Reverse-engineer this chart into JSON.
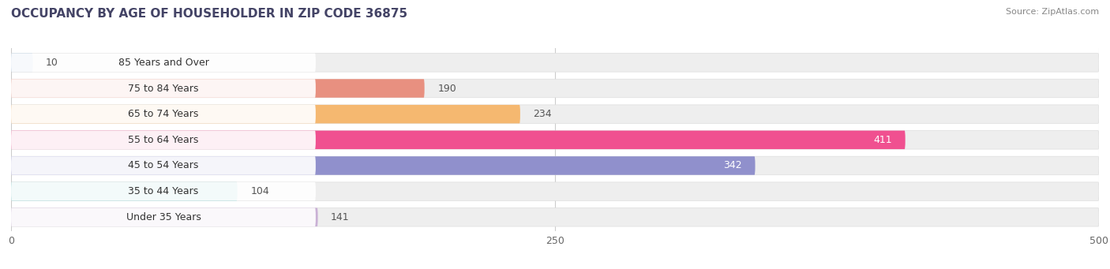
{
  "title": "OCCUPANCY BY AGE OF HOUSEHOLDER IN ZIP CODE 36875",
  "source": "Source: ZipAtlas.com",
  "categories": [
    "Under 35 Years",
    "35 to 44 Years",
    "45 to 54 Years",
    "55 to 64 Years",
    "65 to 74 Years",
    "75 to 84 Years",
    "85 Years and Over"
  ],
  "values": [
    141,
    104,
    342,
    411,
    234,
    190,
    10
  ],
  "bar_colors": [
    "#c9b0d5",
    "#6ec5c5",
    "#9090cc",
    "#f05090",
    "#f5b870",
    "#e89080",
    "#a0c0e0"
  ],
  "xlim_min": 0,
  "xlim_max": 500,
  "xticks": [
    0,
    250,
    500
  ],
  "bg_color": "#ffffff",
  "bar_bg_color": "#eeeeee",
  "title_fontsize": 11,
  "label_fontsize": 9,
  "value_fontsize": 9,
  "value_inside_threshold": 300
}
